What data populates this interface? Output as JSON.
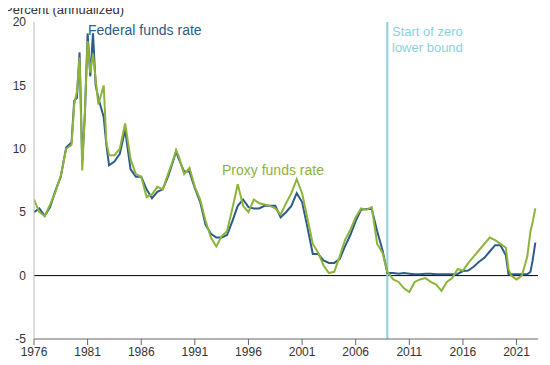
{
  "chart_data": {
    "type": "line",
    "y_label": "Percent (annualized)",
    "x": [
      1976.0,
      1976.5,
      1977.0,
      1977.5,
      1978.0,
      1978.5,
      1979.0,
      1979.5,
      1979.75,
      1980.0,
      1980.25,
      1980.5,
      1980.75,
      1981.0,
      1981.25,
      1981.5,
      1981.75,
      1982.0,
      1982.5,
      1982.75,
      1983.0,
      1983.5,
      1984.0,
      1984.5,
      1985.0,
      1985.5,
      1986.0,
      1986.5,
      1987.0,
      1987.5,
      1988.0,
      1988.5,
      1989.0,
      1989.25,
      1989.5,
      1990.0,
      1990.5,
      1991.0,
      1991.5,
      1992.0,
      1992.5,
      1993.0,
      1993.5,
      1994.0,
      1994.5,
      1995.0,
      1995.5,
      1996.0,
      1996.5,
      1997.0,
      1997.5,
      1998.0,
      1998.5,
      1999.0,
      1999.5,
      2000.0,
      2000.5,
      2001.0,
      2001.5,
      2002.0,
      2002.5,
      2003.0,
      2003.5,
      2004.0,
      2004.5,
      2005.0,
      2005.5,
      2006.0,
      2006.5,
      2007.0,
      2007.5,
      2008.0,
      2008.5,
      2008.95,
      2009.5,
      2010.0,
      2010.5,
      2011.0,
      2011.5,
      2012.0,
      2012.5,
      2013.0,
      2013.5,
      2014.0,
      2014.5,
      2015.0,
      2015.5,
      2016.0,
      2016.5,
      2017.0,
      2017.5,
      2018.0,
      2018.5,
      2019.0,
      2019.5,
      2020.0,
      2020.25,
      2020.5,
      2021.0,
      2021.5,
      2022.0,
      2022.3,
      2022.5,
      2022.75
    ],
    "series": [
      {
        "name": "Federal funds rate",
        "color": "#2b5c8a",
        "values": [
          5.0,
          5.3,
          4.7,
          5.4,
          6.7,
          7.8,
          10.1,
          10.5,
          13.8,
          14.0,
          17.6,
          9.0,
          12.8,
          19.1,
          15.7,
          19.1,
          15.0,
          14.0,
          12.5,
          10.3,
          8.7,
          9.0,
          9.6,
          11.5,
          8.4,
          7.8,
          7.8,
          6.8,
          6.1,
          6.6,
          6.8,
          7.8,
          9.1,
          9.8,
          9.2,
          8.2,
          8.2,
          6.9,
          5.8,
          4.0,
          3.3,
          3.0,
          3.0,
          3.2,
          4.3,
          5.5,
          6.0,
          5.4,
          5.3,
          5.3,
          5.5,
          5.5,
          5.5,
          4.6,
          5.0,
          5.5,
          6.5,
          5.8,
          3.8,
          1.7,
          1.7,
          1.2,
          1.0,
          1.0,
          1.3,
          2.3,
          3.2,
          4.3,
          5.2,
          5.25,
          5.25,
          3.5,
          2.0,
          0.2,
          0.2,
          0.15,
          0.2,
          0.15,
          0.1,
          0.1,
          0.15,
          0.15,
          0.1,
          0.1,
          0.1,
          0.1,
          0.13,
          0.36,
          0.4,
          0.7,
          1.1,
          1.4,
          1.9,
          2.4,
          2.4,
          1.6,
          0.1,
          0.1,
          0.1,
          0.1,
          0.1,
          0.3,
          1.2,
          2.6
        ]
      },
      {
        "name": "Proxy funds rate",
        "color": "#8db33a",
        "values": [
          6.0,
          5.0,
          4.7,
          5.6,
          6.6,
          7.9,
          10.0,
          10.3,
          13.5,
          14.5,
          17.2,
          8.3,
          13.0,
          18.5,
          16.0,
          17.5,
          15.5,
          13.5,
          15.0,
          10.5,
          9.5,
          9.5,
          10.0,
          12.0,
          9.2,
          8.0,
          7.8,
          6.2,
          6.4,
          7.0,
          6.8,
          8.0,
          9.2,
          9.9,
          9.4,
          8.0,
          8.5,
          7.0,
          6.0,
          4.3,
          3.0,
          2.3,
          3.1,
          3.5,
          5.3,
          7.2,
          5.5,
          5.0,
          6.0,
          5.7,
          5.6,
          5.5,
          5.3,
          4.8,
          5.7,
          6.5,
          7.6,
          6.5,
          4.5,
          2.5,
          1.8,
          0.8,
          0.2,
          0.3,
          1.5,
          2.8,
          3.6,
          4.6,
          5.3,
          5.2,
          5.4,
          2.5,
          1.8,
          0.3,
          -0.3,
          -0.5,
          -1.0,
          -1.3,
          -0.5,
          -0.3,
          -0.2,
          -0.5,
          -0.7,
          -1.2,
          -0.5,
          -0.2,
          0.5,
          0.4,
          1.0,
          1.5,
          2.0,
          2.5,
          3.0,
          2.8,
          2.5,
          2.2,
          0.5,
          0.0,
          -0.3,
          0.0,
          1.5,
          3.5,
          4.2,
          5.3
        ]
      }
    ],
    "annotations": [
      {
        "text": "Start of zero lower bound",
        "x": 2008.95,
        "color": "#8fcfe0"
      }
    ],
    "reference_lines": [
      {
        "axis": "y",
        "value": 0,
        "color": "#000000"
      }
    ],
    "xlim": [
      1976,
      2023
    ],
    "xticks": [
      1976,
      1981,
      1986,
      1991,
      1996,
      2001,
      2006,
      2011,
      2016,
      2021
    ],
    "ylim": [
      -5,
      20
    ],
    "yticks": [
      -5,
      0,
      5,
      10,
      15,
      20
    ],
    "grid": false
  }
}
